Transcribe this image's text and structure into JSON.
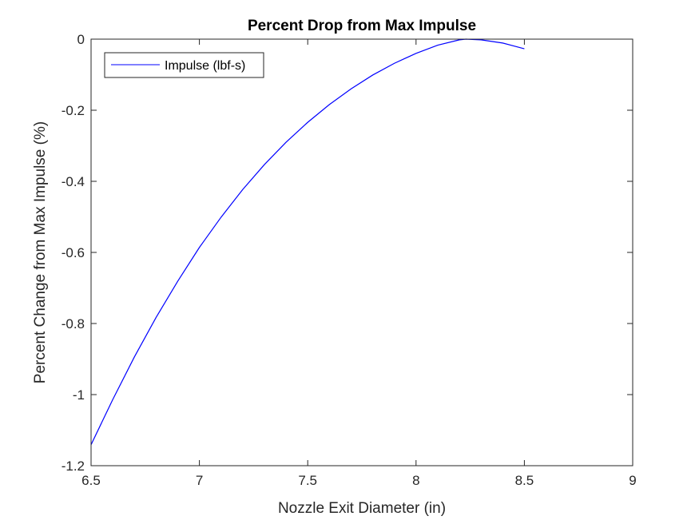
{
  "chart_data": {
    "type": "line",
    "title": "Percent Drop from Max Impulse",
    "xlabel": "Nozzle Exit Diameter (in)",
    "ylabel": "Percent Change from Max Impulse (%)",
    "xlim": [
      6.5,
      9
    ],
    "ylim": [
      -1.2,
      0
    ],
    "xticks": [
      6.5,
      7,
      7.5,
      8,
      8.5,
      9
    ],
    "yticks": [
      -1.2,
      -1,
      -0.8,
      -0.6,
      -0.4,
      -0.2,
      0
    ],
    "xtick_labels": [
      "6.5",
      "7",
      "7.5",
      "8",
      "8.5",
      "9"
    ],
    "ytick_labels": [
      "-1.2",
      "-1",
      "-0.8",
      "-0.6",
      "-0.4",
      "-0.2",
      "0"
    ],
    "grid": false,
    "legend_position": "top-left",
    "series": [
      {
        "name": "Impulse (lbf-s)",
        "color": "#0000ff",
        "x": [
          6.5,
          6.6,
          6.7,
          6.8,
          6.9,
          7.0,
          7.1,
          7.2,
          7.3,
          7.4,
          7.5,
          7.6,
          7.7,
          7.8,
          7.9,
          8.0,
          8.1,
          8.2,
          8.23,
          8.3,
          8.4,
          8.5
        ],
        "y": [
          -1.141,
          -1.014,
          -0.894,
          -0.783,
          -0.681,
          -0.586,
          -0.501,
          -0.423,
          -0.353,
          -0.29,
          -0.234,
          -0.184,
          -0.14,
          -0.101,
          -0.068,
          -0.04,
          -0.017,
          -0.002,
          0.0,
          -0.002,
          -0.011,
          -0.027
        ]
      }
    ]
  }
}
